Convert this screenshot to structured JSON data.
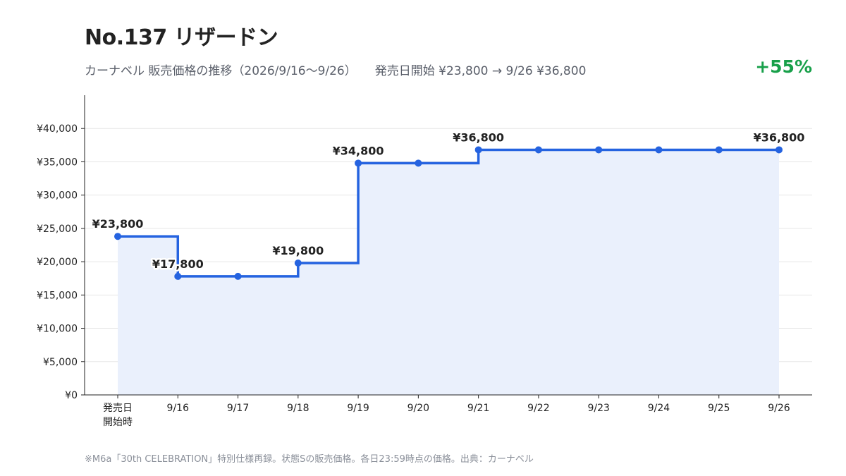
{
  "header": {
    "title": "No.137 リザードン",
    "subtitle_left": "カーナベル 販売価格の推移（2026/9/16〜9/26）",
    "subtitle_right": "発売日開始 ¥23,800 → 9/26 ¥36,800",
    "change": "+55%"
  },
  "footnote": "※M6a「30th CELEBRATION」特別仕様再録。状態Sの販売価格。各日23:59時点の価格。出典：カーナベル",
  "colors": {
    "line": "#2563e0",
    "area": "#eaf0fc",
    "change": "#18a04a",
    "grid": "#e6e6e6"
  },
  "chart_data": {
    "type": "line",
    "step": true,
    "categories": [
      "発売日\n開始時",
      "9/16",
      "9/17",
      "9/18",
      "9/19",
      "9/20",
      "9/21",
      "9/22",
      "9/23",
      "9/24",
      "9/25",
      "9/26"
    ],
    "values": [
      23800,
      17800,
      17800,
      19800,
      34800,
      34800,
      36800,
      36800,
      36800,
      36800,
      36800,
      36800
    ],
    "ylim": [
      0,
      45000
    ],
    "yticks": [
      0,
      5000,
      10000,
      15000,
      20000,
      25000,
      30000,
      35000,
      40000
    ],
    "ytick_labels": [
      "¥0",
      "¥5,000",
      "¥10,000",
      "¥15,000",
      "¥20,000",
      "¥25,000",
      "¥30,000",
      "¥35,000",
      "¥40,000"
    ],
    "data_labels": [
      {
        "index": 0,
        "text": "¥23,800"
      },
      {
        "index": 1,
        "text": "¥17,800"
      },
      {
        "index": 3,
        "text": "¥19,800"
      },
      {
        "index": 4,
        "text": "¥34,800"
      },
      {
        "index": 6,
        "text": "¥36,800"
      },
      {
        "index": 11,
        "text": "¥36,800"
      }
    ],
    "grid": true,
    "legend": "none"
  }
}
